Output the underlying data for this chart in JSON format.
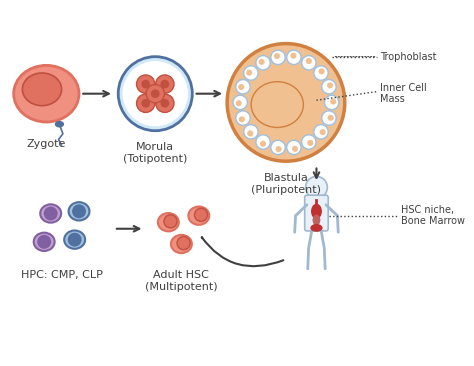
{
  "bg_color": "#ffffff",
  "title": "",
  "zygote_label": "Zygote",
  "morula_label": "Morula\n(Totipotent)",
  "blastula_label": "Blastula\n(Pluripotent)",
  "hsc_label": "Adult HSC\n(Multipotent)",
  "hpc_label": "HPC: CMP, CLP",
  "trophoblast_label": "Trophoblast",
  "inner_cell_label": "Inner Cell\nMass",
  "hsc_niche_label": "HSC niche,\nBone Marrow",
  "salmon": "#E07060",
  "dark_salmon": "#C05040",
  "light_salmon": "#F09080",
  "blue_gray": "#5070A0",
  "light_blue": "#A0C0E0",
  "very_light_blue": "#D0E8F8",
  "orange_brown": "#D08040",
  "light_orange": "#F0C090",
  "white": "#FFFFFF",
  "dark_gray": "#404040",
  "medium_gray": "#808080",
  "purple": "#8060A0",
  "light_purple": "#C0A0D0",
  "body_outline": "#A0B8D0",
  "body_fill": "#E8F0F8",
  "red_organ": "#C03030"
}
